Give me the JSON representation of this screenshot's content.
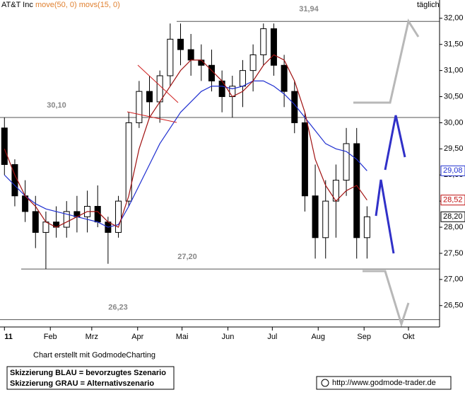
{
  "chart_data": {
    "type": "candlestick",
    "title": "AT&T Inc",
    "indicators": "move(50, 0) movs(15, 0)",
    "period": "täglich",
    "x": [
      0,
      7,
      14,
      21,
      28,
      35,
      42,
      49,
      56,
      63,
      70,
      77,
      84,
      91,
      98,
      105,
      112,
      119,
      126,
      133,
      140,
      147,
      154,
      161,
      168,
      175,
      182,
      189,
      196,
      203,
      210,
      217,
      224,
      231,
      238,
      245
    ],
    "open": [
      29.9,
      29.2,
      28.6,
      28.3,
      27.9,
      28.1,
      28.0,
      28.3,
      28.2,
      28.4,
      28.1,
      27.9,
      28.5,
      30.0,
      30.6,
      30.4,
      30.9,
      31.6,
      31.4,
      31.2,
      31.1,
      30.8,
      30.5,
      30.7,
      31.0,
      31.3,
      31.8,
      31.1,
      30.6,
      30.0,
      28.6,
      27.8,
      28.5,
      28.9,
      29.6,
      27.8
    ],
    "high": [
      30.1,
      29.3,
      28.9,
      28.6,
      28.3,
      28.4,
      28.5,
      28.6,
      28.7,
      28.8,
      28.2,
      28.6,
      30.2,
      30.8,
      30.9,
      31.0,
      31.9,
      31.9,
      31.7,
      31.5,
      31.4,
      31.0,
      30.9,
      31.2,
      31.5,
      31.9,
      31.9,
      31.3,
      30.8,
      30.2,
      29.2,
      28.9,
      29.2,
      29.9,
      29.9,
      28.4
    ],
    "low": [
      29.0,
      28.4,
      28.1,
      27.6,
      27.2,
      27.8,
      27.8,
      27.9,
      27.9,
      28.0,
      27.3,
      27.8,
      28.4,
      29.9,
      30.1,
      30.0,
      30.7,
      31.1,
      30.9,
      30.8,
      30.6,
      30.2,
      30.1,
      30.3,
      30.6,
      31.1,
      30.9,
      30.3,
      29.8,
      28.3,
      27.4,
      27.4,
      27.8,
      28.6,
      27.4,
      27.4
    ],
    "close": [
      29.2,
      28.6,
      28.3,
      27.9,
      28.1,
      28.0,
      28.3,
      28.2,
      28.4,
      28.1,
      27.9,
      28.5,
      30.0,
      30.6,
      30.4,
      30.9,
      31.6,
      31.4,
      31.2,
      31.1,
      30.8,
      30.5,
      30.7,
      31.0,
      31.3,
      31.8,
      31.1,
      30.6,
      30.0,
      28.6,
      27.8,
      28.5,
      28.9,
      29.6,
      27.8,
      28.2
    ],
    "series": [
      {
        "name": "move(50, 0)",
        "color": "#1f2fd0",
        "values": [
          29.0,
          28.8,
          28.6,
          28.45,
          28.35,
          28.3,
          28.25,
          28.2,
          28.15,
          28.1,
          28.0,
          28.05,
          28.4,
          28.8,
          29.2,
          29.6,
          29.9,
          30.2,
          30.4,
          30.6,
          30.7,
          30.7,
          30.65,
          30.7,
          30.8,
          30.8,
          30.7,
          30.55,
          30.35,
          30.1,
          29.85,
          29.6,
          29.5,
          29.45,
          29.3,
          29.08
        ]
      },
      {
        "name": "movs(15, 0)",
        "color": "#a01010",
        "values": [
          29.5,
          29.0,
          28.6,
          28.4,
          28.1,
          28.0,
          28.1,
          28.2,
          28.3,
          28.3,
          28.1,
          28.0,
          28.6,
          29.5,
          30.1,
          30.4,
          30.7,
          31.0,
          31.2,
          31.2,
          31.0,
          30.8,
          30.5,
          30.6,
          30.8,
          31.1,
          31.3,
          31.2,
          30.8,
          30.2,
          29.3,
          28.8,
          28.5,
          28.7,
          28.8,
          28.52
        ]
      }
    ],
    "levels": [
      {
        "value": 31.94,
        "label": "31,94"
      },
      {
        "value": 30.1,
        "label": "30,10"
      },
      {
        "value": 27.2,
        "label": "27,20"
      },
      {
        "value": 26.23,
        "label": "26,23"
      }
    ],
    "price_labels": [
      {
        "value": 29.08,
        "label": "29,08",
        "color": "#1f2fd0"
      },
      {
        "value": 28.52,
        "label": "28,52",
        "color": "#c01010"
      },
      {
        "value": 28.2,
        "label": "28,20",
        "color": "#000000"
      }
    ],
    "xlim": [
      -3,
      294
    ],
    "ylim": [
      26.09,
      32.35
    ],
    "xticks": [
      {
        "value": 0,
        "label": "11"
      },
      {
        "value": 31,
        "label": "Feb"
      },
      {
        "value": 59,
        "label": "Mrz"
      },
      {
        "value": 90,
        "label": "Apr"
      },
      {
        "value": 120,
        "label": "Mai"
      },
      {
        "value": 151,
        "label": "Jun"
      },
      {
        "value": 181,
        "label": "Jul"
      },
      {
        "value": 212,
        "label": "Aug"
      },
      {
        "value": 243,
        "label": "Sep"
      },
      {
        "value": 273,
        "label": "Okt"
      }
    ],
    "yticks": [
      {
        "value": 26.5,
        "label": "26,50"
      },
      {
        "value": 27,
        "label": "27,00"
      },
      {
        "value": 27.5,
        "label": "27,50"
      },
      {
        "value": 28,
        "label": "28,00"
      },
      {
        "value": 28.5,
        "label": "28,50"
      },
      {
        "value": 29,
        "label": "29,00"
      },
      {
        "value": 29.5,
        "label": "29,50"
      },
      {
        "value": 30,
        "label": "30,00"
      },
      {
        "value": 30.5,
        "label": "30,50"
      },
      {
        "value": 31,
        "label": "31,00"
      },
      {
        "value": 31.5,
        "label": "31,50"
      },
      {
        "value": 32,
        "label": "32,00"
      }
    ]
  },
  "footer": {
    "credit": "Chart erstellt mit GodmodeCharting",
    "legend_blue": "Skizzierung BLAU = bevorzugtes Szenario",
    "legend_grey": "Skizzierung GRAU = Alternativszenario",
    "url": "http://www.godmode-trader.de"
  }
}
